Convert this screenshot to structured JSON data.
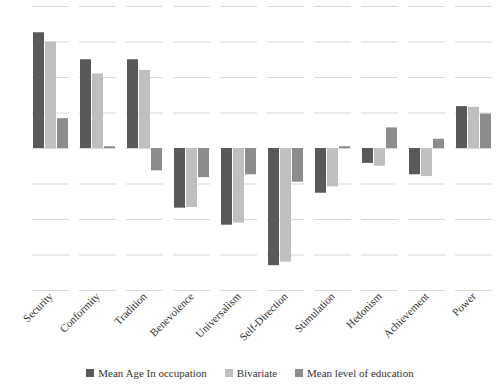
{
  "chart_data": {
    "type": "bar",
    "categories": [
      "Security",
      "Conformity",
      "Tradition",
      "Benevolence",
      "Universalism",
      "Self-Direction",
      "Stimulation",
      "Hedonism",
      "Achievement",
      "Power"
    ],
    "series": [
      {
        "name": "Mean Age In occupation",
        "color": "#595959",
        "values": [
          0.326,
          0.25,
          0.25,
          -0.168,
          -0.216,
          -0.33,
          -0.126,
          -0.042,
          -0.074,
          0.118
        ]
      },
      {
        "name": "Bivariate",
        "color": "#bfbfbf",
        "values": [
          0.3,
          0.21,
          0.22,
          -0.166,
          -0.21,
          -0.32,
          -0.108,
          -0.05,
          -0.079,
          0.116
        ]
      },
      {
        "name": "Mean level of education",
        "color": "#8c8c8c",
        "values": [
          0.084,
          0.005,
          -0.063,
          -0.082,
          -0.074,
          -0.095,
          0.005,
          0.058,
          0.026,
          0.097
        ]
      }
    ],
    "ylim": [
      -0.4,
      0.4
    ],
    "yticks": [
      -0.4,
      -0.3,
      -0.2,
      -0.1,
      0,
      0.1,
      0.2,
      0.3,
      0.4
    ],
    "grid": true,
    "tick_labels": "x",
    "legend": "bottom"
  }
}
